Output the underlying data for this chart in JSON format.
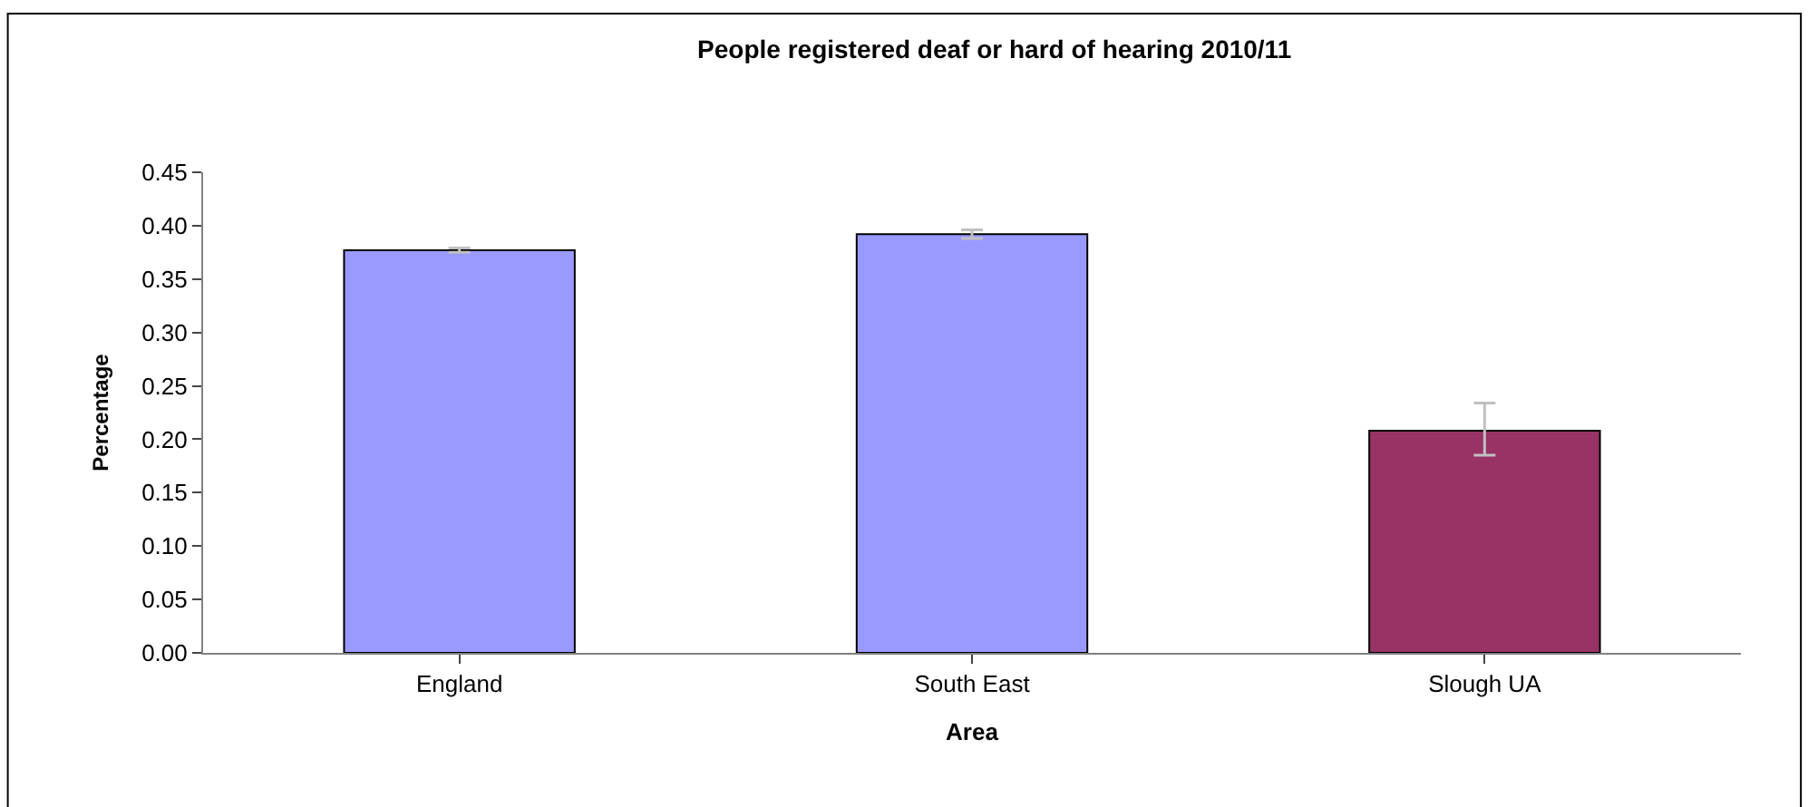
{
  "chart_data": {
    "type": "bar",
    "title": "People registered deaf or hard of hearing 2010/11",
    "xlabel": "Area",
    "ylabel": "Percentage",
    "categories": [
      "England",
      "South East",
      "Slough UA"
    ],
    "values": [
      0.377,
      0.392,
      0.208
    ],
    "colors": [
      "#9999ff",
      "#9999ff",
      "#993366"
    ],
    "errors": [
      0.002,
      0.004,
      [
        0.185,
        0.234
      ]
    ],
    "ylim": [
      0,
      0.45
    ],
    "yticks": [
      {
        "value": 0,
        "label": "0.00"
      },
      0.05,
      {
        "value": 0.1,
        "label": "0.10"
      },
      0.15,
      {
        "value": 0.2,
        "label": "0.20"
      },
      0.25,
      {
        "value": 0.3,
        "label": "0.30"
      },
      0.35,
      {
        "value": 0.4,
        "label": "0.40"
      },
      0.45
    ]
  }
}
